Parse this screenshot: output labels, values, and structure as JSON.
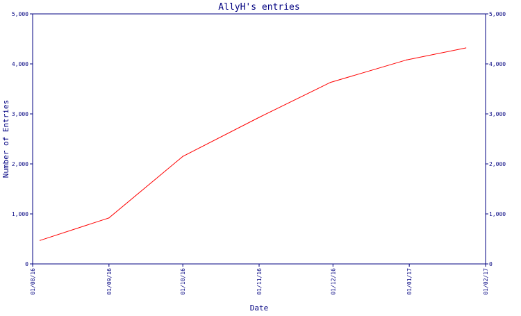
{
  "chart_data": {
    "type": "line",
    "title": "AllyH's entries",
    "xlabel": "Date",
    "ylabel": "Number of Entries",
    "ylim": [
      0,
      5000
    ],
    "xlim": [
      "2016-08-01",
      "2017-02-01"
    ],
    "y_ticks": [
      0,
      1000,
      2000,
      3000,
      4000,
      5000
    ],
    "y_tick_labels": [
      "0",
      "1,000",
      "2,000",
      "3,000",
      "4,000",
      "5,000"
    ],
    "x_ticks": [
      "2016-08-01",
      "2016-09-01",
      "2016-10-01",
      "2016-11-01",
      "2016-12-01",
      "2017-01-01",
      "2017-02-01"
    ],
    "x_tick_labels": [
      "01/08/16",
      "01/09/16",
      "01/10/16",
      "01/11/16",
      "01/12/16",
      "01/01/17",
      "01/02/17"
    ],
    "grid": false,
    "colors": {
      "axis": "#000080",
      "line": "#ff0000",
      "background": "#ffffff"
    },
    "series": [
      {
        "x": [
          "2016-08-04",
          "2016-09-01",
          "2016-10-01",
          "2016-11-01",
          "2016-11-30",
          "2016-12-31",
          "2017-01-24"
        ],
        "values": [
          470,
          920,
          2150,
          2930,
          3630,
          4080,
          4320
        ]
      }
    ]
  }
}
